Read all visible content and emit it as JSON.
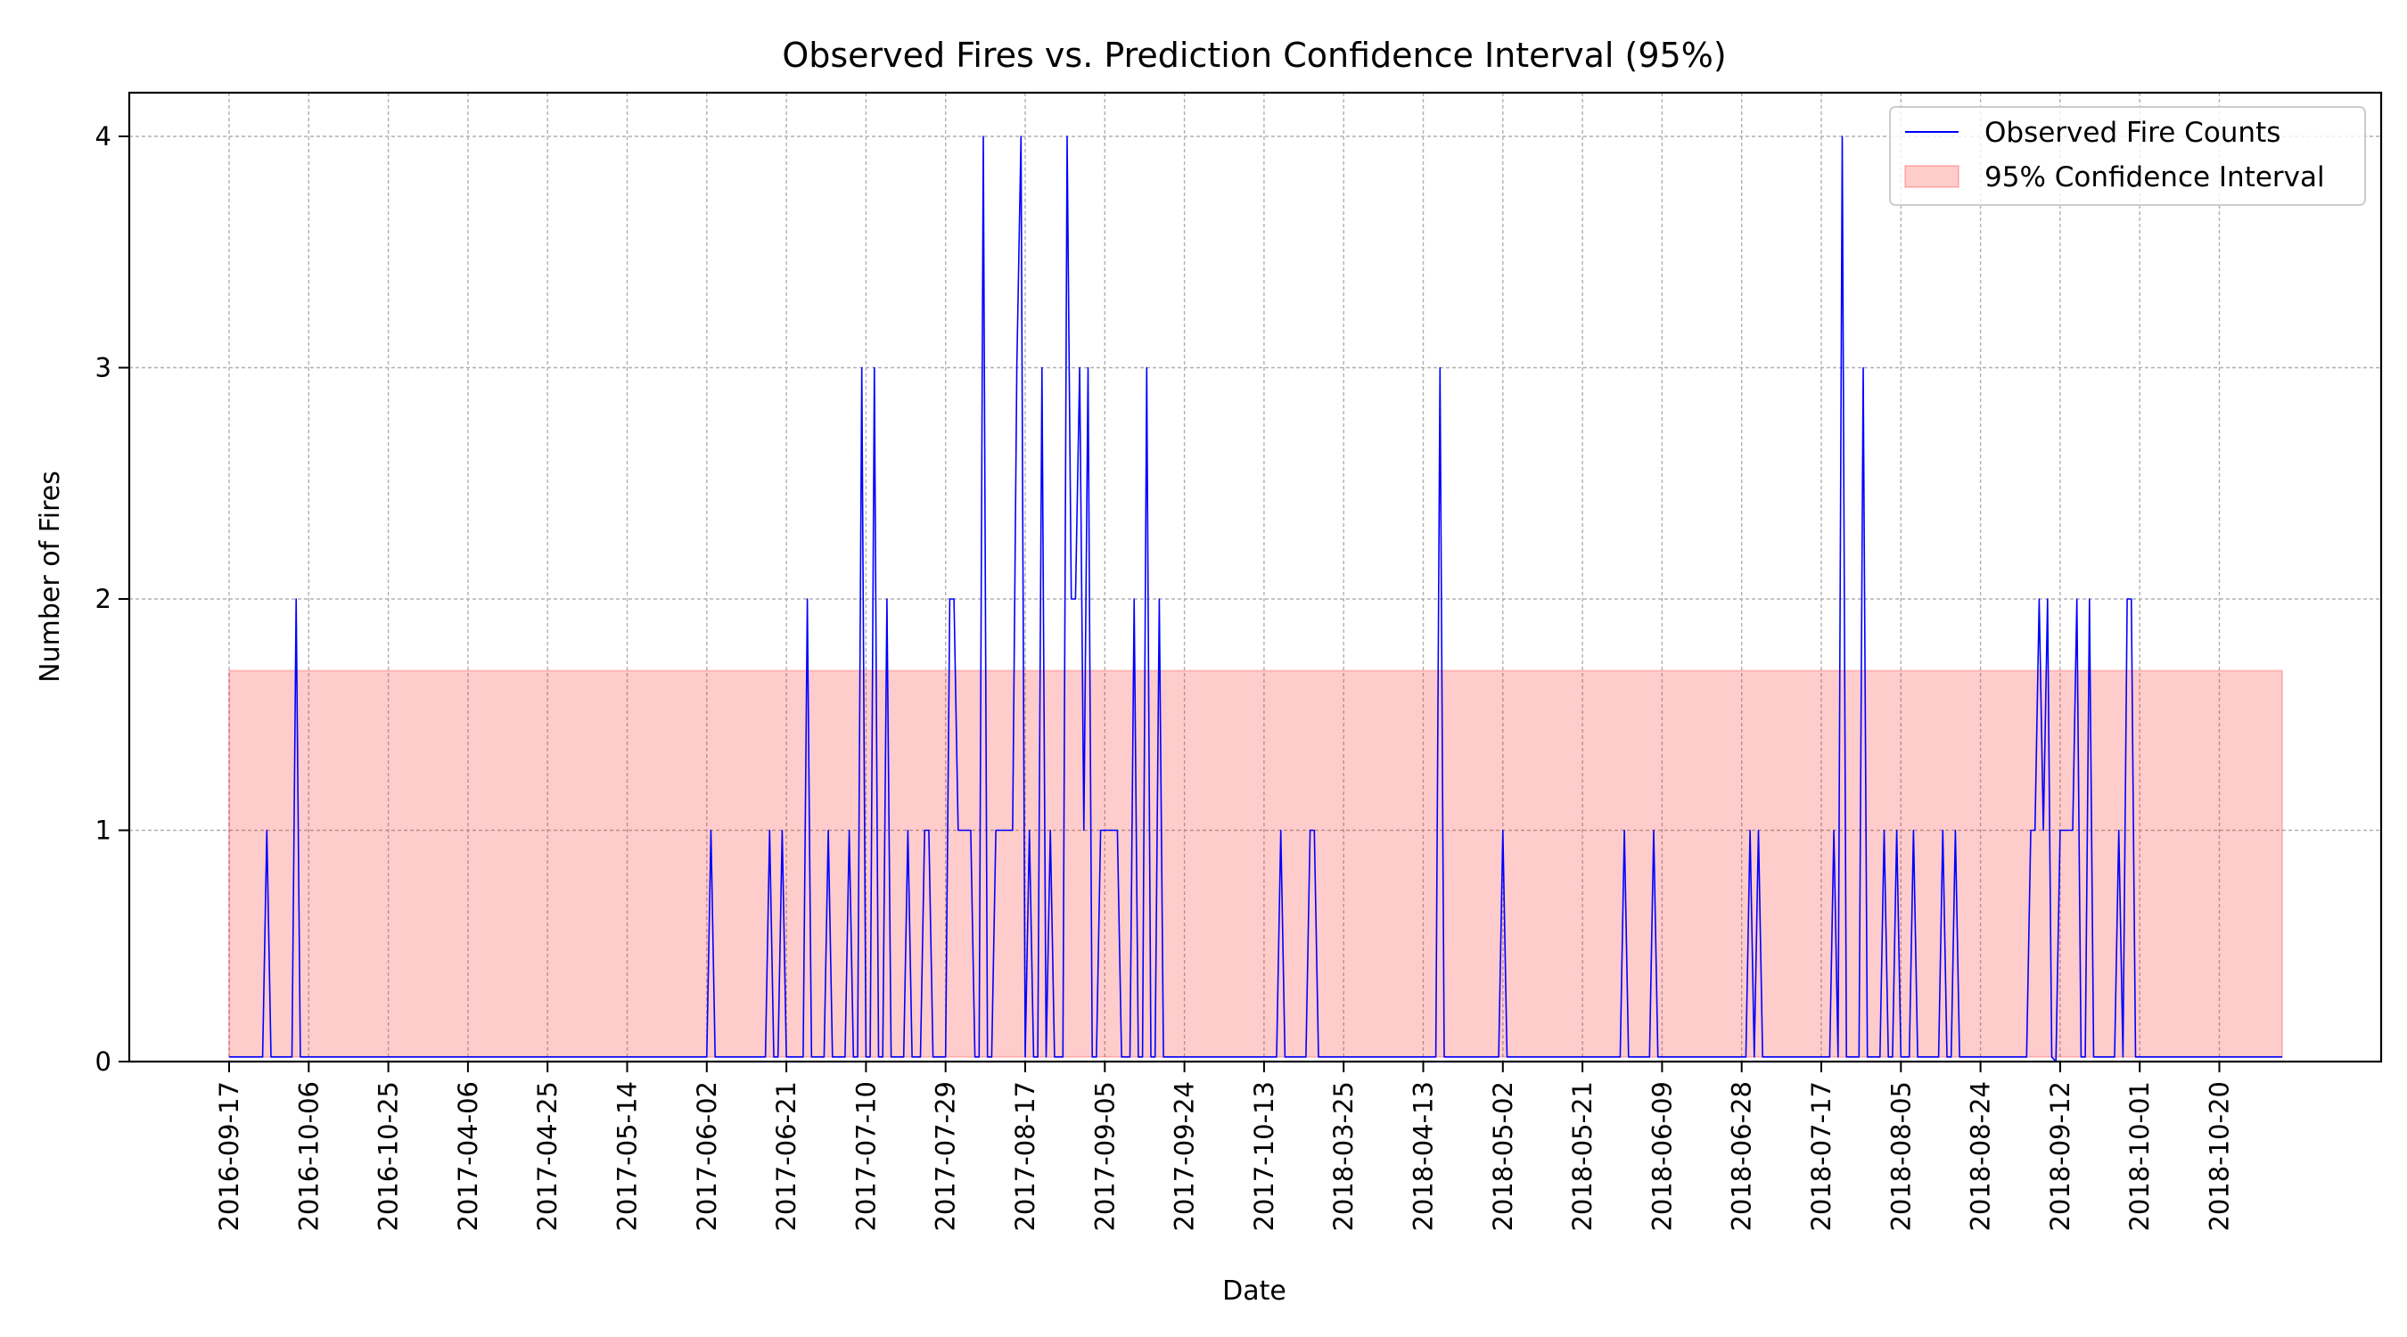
{
  "chart_data": {
    "type": "line",
    "title": "Observed Fires vs. Prediction Confidence Interval (95%)",
    "xlabel": "Date",
    "ylabel": "Number of Fires",
    "ylim": [
      0,
      4.2
    ],
    "yticks": [
      0,
      1,
      2,
      3,
      4
    ],
    "grid": true,
    "legend_position": "top-right",
    "xtick_labels": [
      "2016-09-17",
      "2016-10-06",
      "2016-10-25",
      "2017-04-06",
      "2017-04-25",
      "2017-05-14",
      "2017-06-02",
      "2017-06-21",
      "2017-07-10",
      "2017-07-29",
      "2017-08-17",
      "2017-09-05",
      "2017-09-24",
      "2017-10-13",
      "2018-03-25",
      "2018-04-13",
      "2018-05-02",
      "2018-05-21",
      "2018-06-09",
      "2018-06-28",
      "2018-07-17",
      "2018-08-05",
      "2018-08-24",
      "2018-09-12",
      "2018-10-01",
      "2018-10-20"
    ],
    "n_observations": 491,
    "tick_every_n_observations": 19,
    "confidence_interval": {
      "name": "95% Confidence Interval",
      "lower": 0.02,
      "upper": 1.69,
      "color": "#ff0000"
    },
    "series": [
      {
        "name": "Observed Fire Counts",
        "color": "#0000ff",
        "default_value": 0.02,
        "events": [
          [
            9,
            1
          ],
          [
            16,
            2
          ],
          [
            115,
            1
          ],
          [
            129,
            1
          ],
          [
            132,
            1
          ],
          [
            138,
            2
          ],
          [
            143,
            1
          ],
          [
            148,
            1
          ],
          [
            151,
            3
          ],
          [
            154,
            3
          ],
          [
            157,
            2
          ],
          [
            162,
            1
          ],
          [
            166,
            1
          ],
          [
            167,
            1
          ],
          [
            172,
            2
          ],
          [
            173,
            2
          ],
          [
            174,
            1
          ],
          [
            175,
            1
          ],
          [
            176,
            1
          ],
          [
            177,
            1
          ],
          [
            180,
            4
          ],
          [
            183,
            1
          ],
          [
            184,
            1
          ],
          [
            185,
            1
          ],
          [
            186,
            1
          ],
          [
            187,
            1
          ],
          [
            188,
            3
          ],
          [
            189,
            4
          ],
          [
            191,
            1
          ],
          [
            194,
            3
          ],
          [
            196,
            1
          ],
          [
            200,
            4
          ],
          [
            201,
            2
          ],
          [
            202,
            2
          ],
          [
            203,
            3
          ],
          [
            204,
            1
          ],
          [
            205,
            3
          ],
          [
            208,
            1
          ],
          [
            209,
            1
          ],
          [
            210,
            1
          ],
          [
            211,
            1
          ],
          [
            212,
            1
          ],
          [
            216,
            2
          ],
          [
            219,
            3
          ],
          [
            222,
            2
          ],
          [
            251,
            1
          ],
          [
            258,
            1
          ],
          [
            259,
            1
          ],
          [
            289,
            3
          ],
          [
            304,
            1
          ],
          [
            333,
            1
          ],
          [
            340,
            1
          ],
          [
            363,
            1
          ],
          [
            365,
            1
          ],
          [
            383,
            1
          ],
          [
            385,
            4
          ],
          [
            390,
            3
          ],
          [
            395,
            1
          ],
          [
            398,
            1
          ],
          [
            402,
            1
          ],
          [
            409,
            1
          ],
          [
            412,
            1
          ],
          [
            430,
            1
          ],
          [
            431,
            1
          ],
          [
            432,
            2
          ],
          [
            433,
            1
          ],
          [
            434,
            2
          ],
          [
            436,
            0
          ],
          [
            437,
            1
          ],
          [
            438,
            1
          ],
          [
            439,
            1
          ],
          [
            440,
            1
          ],
          [
            441,
            2
          ],
          [
            444,
            2
          ],
          [
            451,
            1
          ],
          [
            453,
            2
          ],
          [
            454,
            2
          ]
        ]
      }
    ]
  }
}
